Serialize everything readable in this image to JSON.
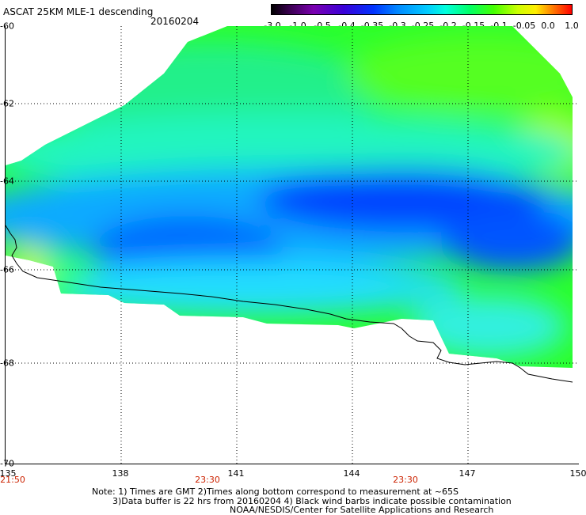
{
  "header": {
    "title": "ASCAT 25KM MLE-1 descending",
    "date": "20160204"
  },
  "colorbar": {
    "labels": [
      "-3.0",
      "-1.0",
      "-0.5",
      "-0.4",
      "-0.35",
      "-0.3",
      "-0.25",
      "-0.2",
      "-0.15",
      "-0.1",
      "-0.05",
      "0.0",
      "1.0"
    ],
    "colors": [
      "#000000",
      "#7a00b0",
      "#0033ff",
      "#00ccff",
      "#00ff66",
      "#ccff00",
      "#ff8800",
      "#ff0000"
    ]
  },
  "axes": {
    "y_labels": [
      "-60",
      "-62",
      "-64",
      "-66",
      "-68",
      "-70"
    ],
    "x_labels": [
      "135",
      "138",
      "141",
      "144",
      "147",
      "150"
    ],
    "time_labels": [
      "21:50",
      "23:30",
      "23:30"
    ],
    "x_range": [
      135,
      150
    ],
    "y_range": [
      -70,
      -60
    ],
    "grid": true
  },
  "notes": {
    "line1": "Note: 1) Times are GMT 2)Times along bottom correspond to measurement at ~65S",
    "line2": "3)Data buffer is 22 hrs from 20160204 4) Black wind barbs indicate possible contamination",
    "line3": "NOAA/NESDIS/Center for Satellite Applications and Research"
  }
}
